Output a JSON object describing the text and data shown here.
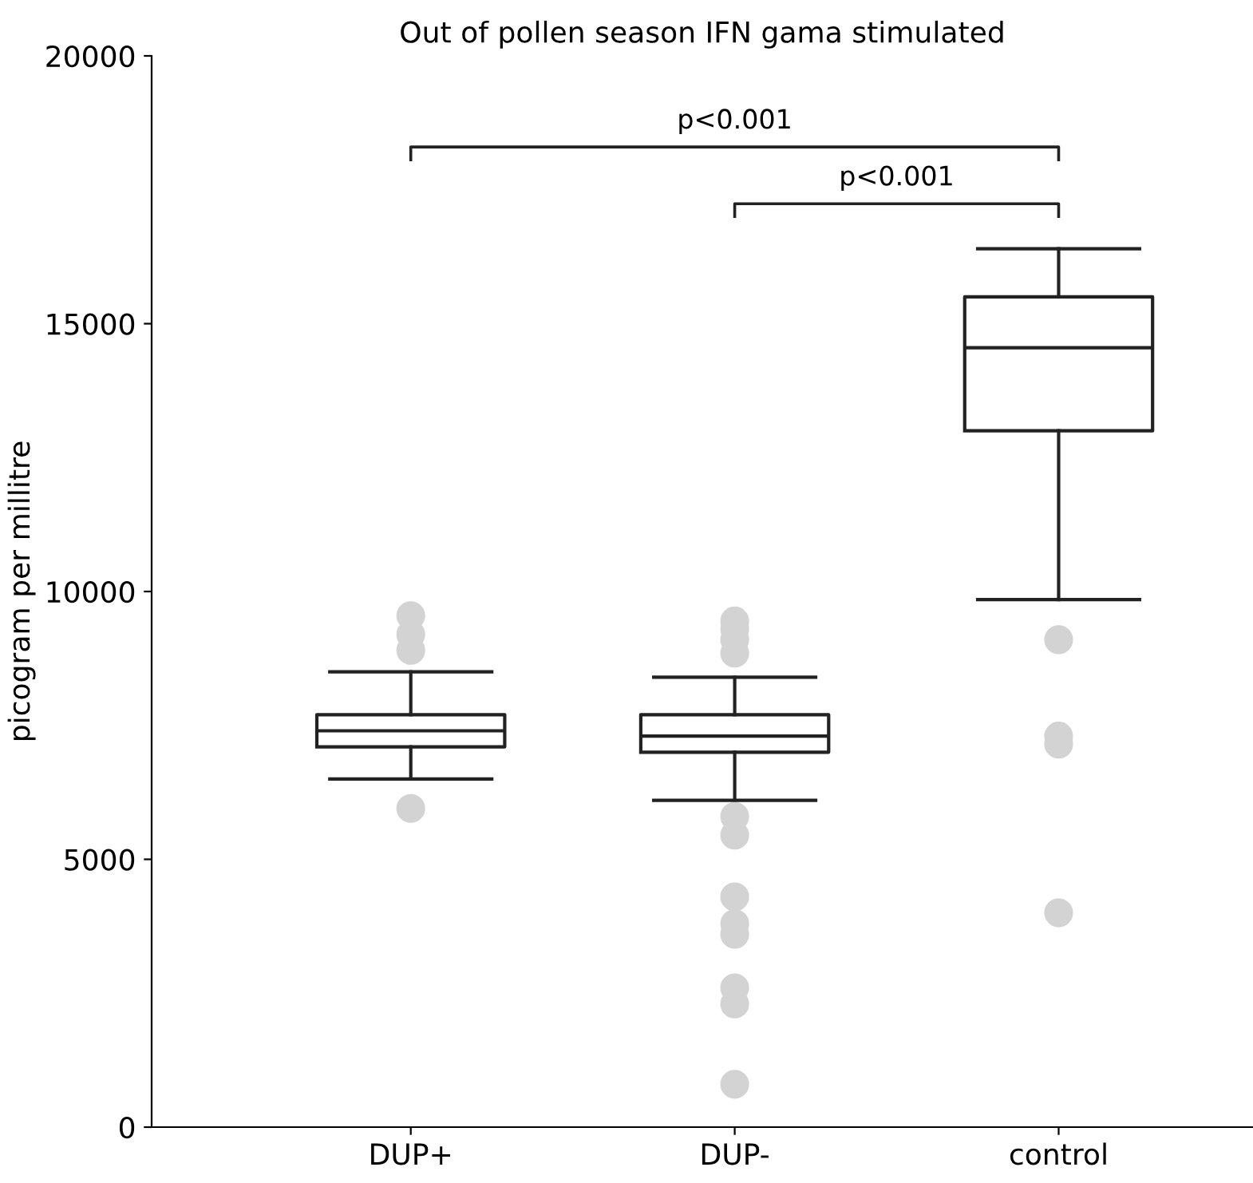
{
  "chart_data": {
    "type": "box",
    "title": "Out of pollen season IFN gama stimulated",
    "ylabel": "picogram per millitre",
    "categories": [
      "DUP+",
      "DUP-",
      "control"
    ],
    "boxes": [
      {
        "low": 6500,
        "q1": 7100,
        "median": 7400,
        "q3": 7700,
        "high": 8500,
        "outliers": [
          9550,
          9200,
          8900,
          5950
        ]
      },
      {
        "low": 6100,
        "q1": 7000,
        "median": 7300,
        "q3": 7700,
        "high": 8400,
        "outliers": [
          9450,
          9300,
          9100,
          8850,
          5800,
          5450,
          4300,
          3800,
          3600,
          2600,
          2300,
          800
        ]
      },
      {
        "low": 9850,
        "q1": 13000,
        "median": 14550,
        "q3": 15500,
        "high": 16400,
        "outliers": [
          9100,
          7300,
          7150,
          4000
        ]
      }
    ],
    "color": "#222222",
    "marker": "circle",
    "ylim": [
      0,
      20000
    ],
    "yticks": [
      0,
      5000,
      10000,
      15000,
      20000
    ],
    "grid": false,
    "annotations": [
      "p<0.001",
      "p<0.001"
    ]
  }
}
